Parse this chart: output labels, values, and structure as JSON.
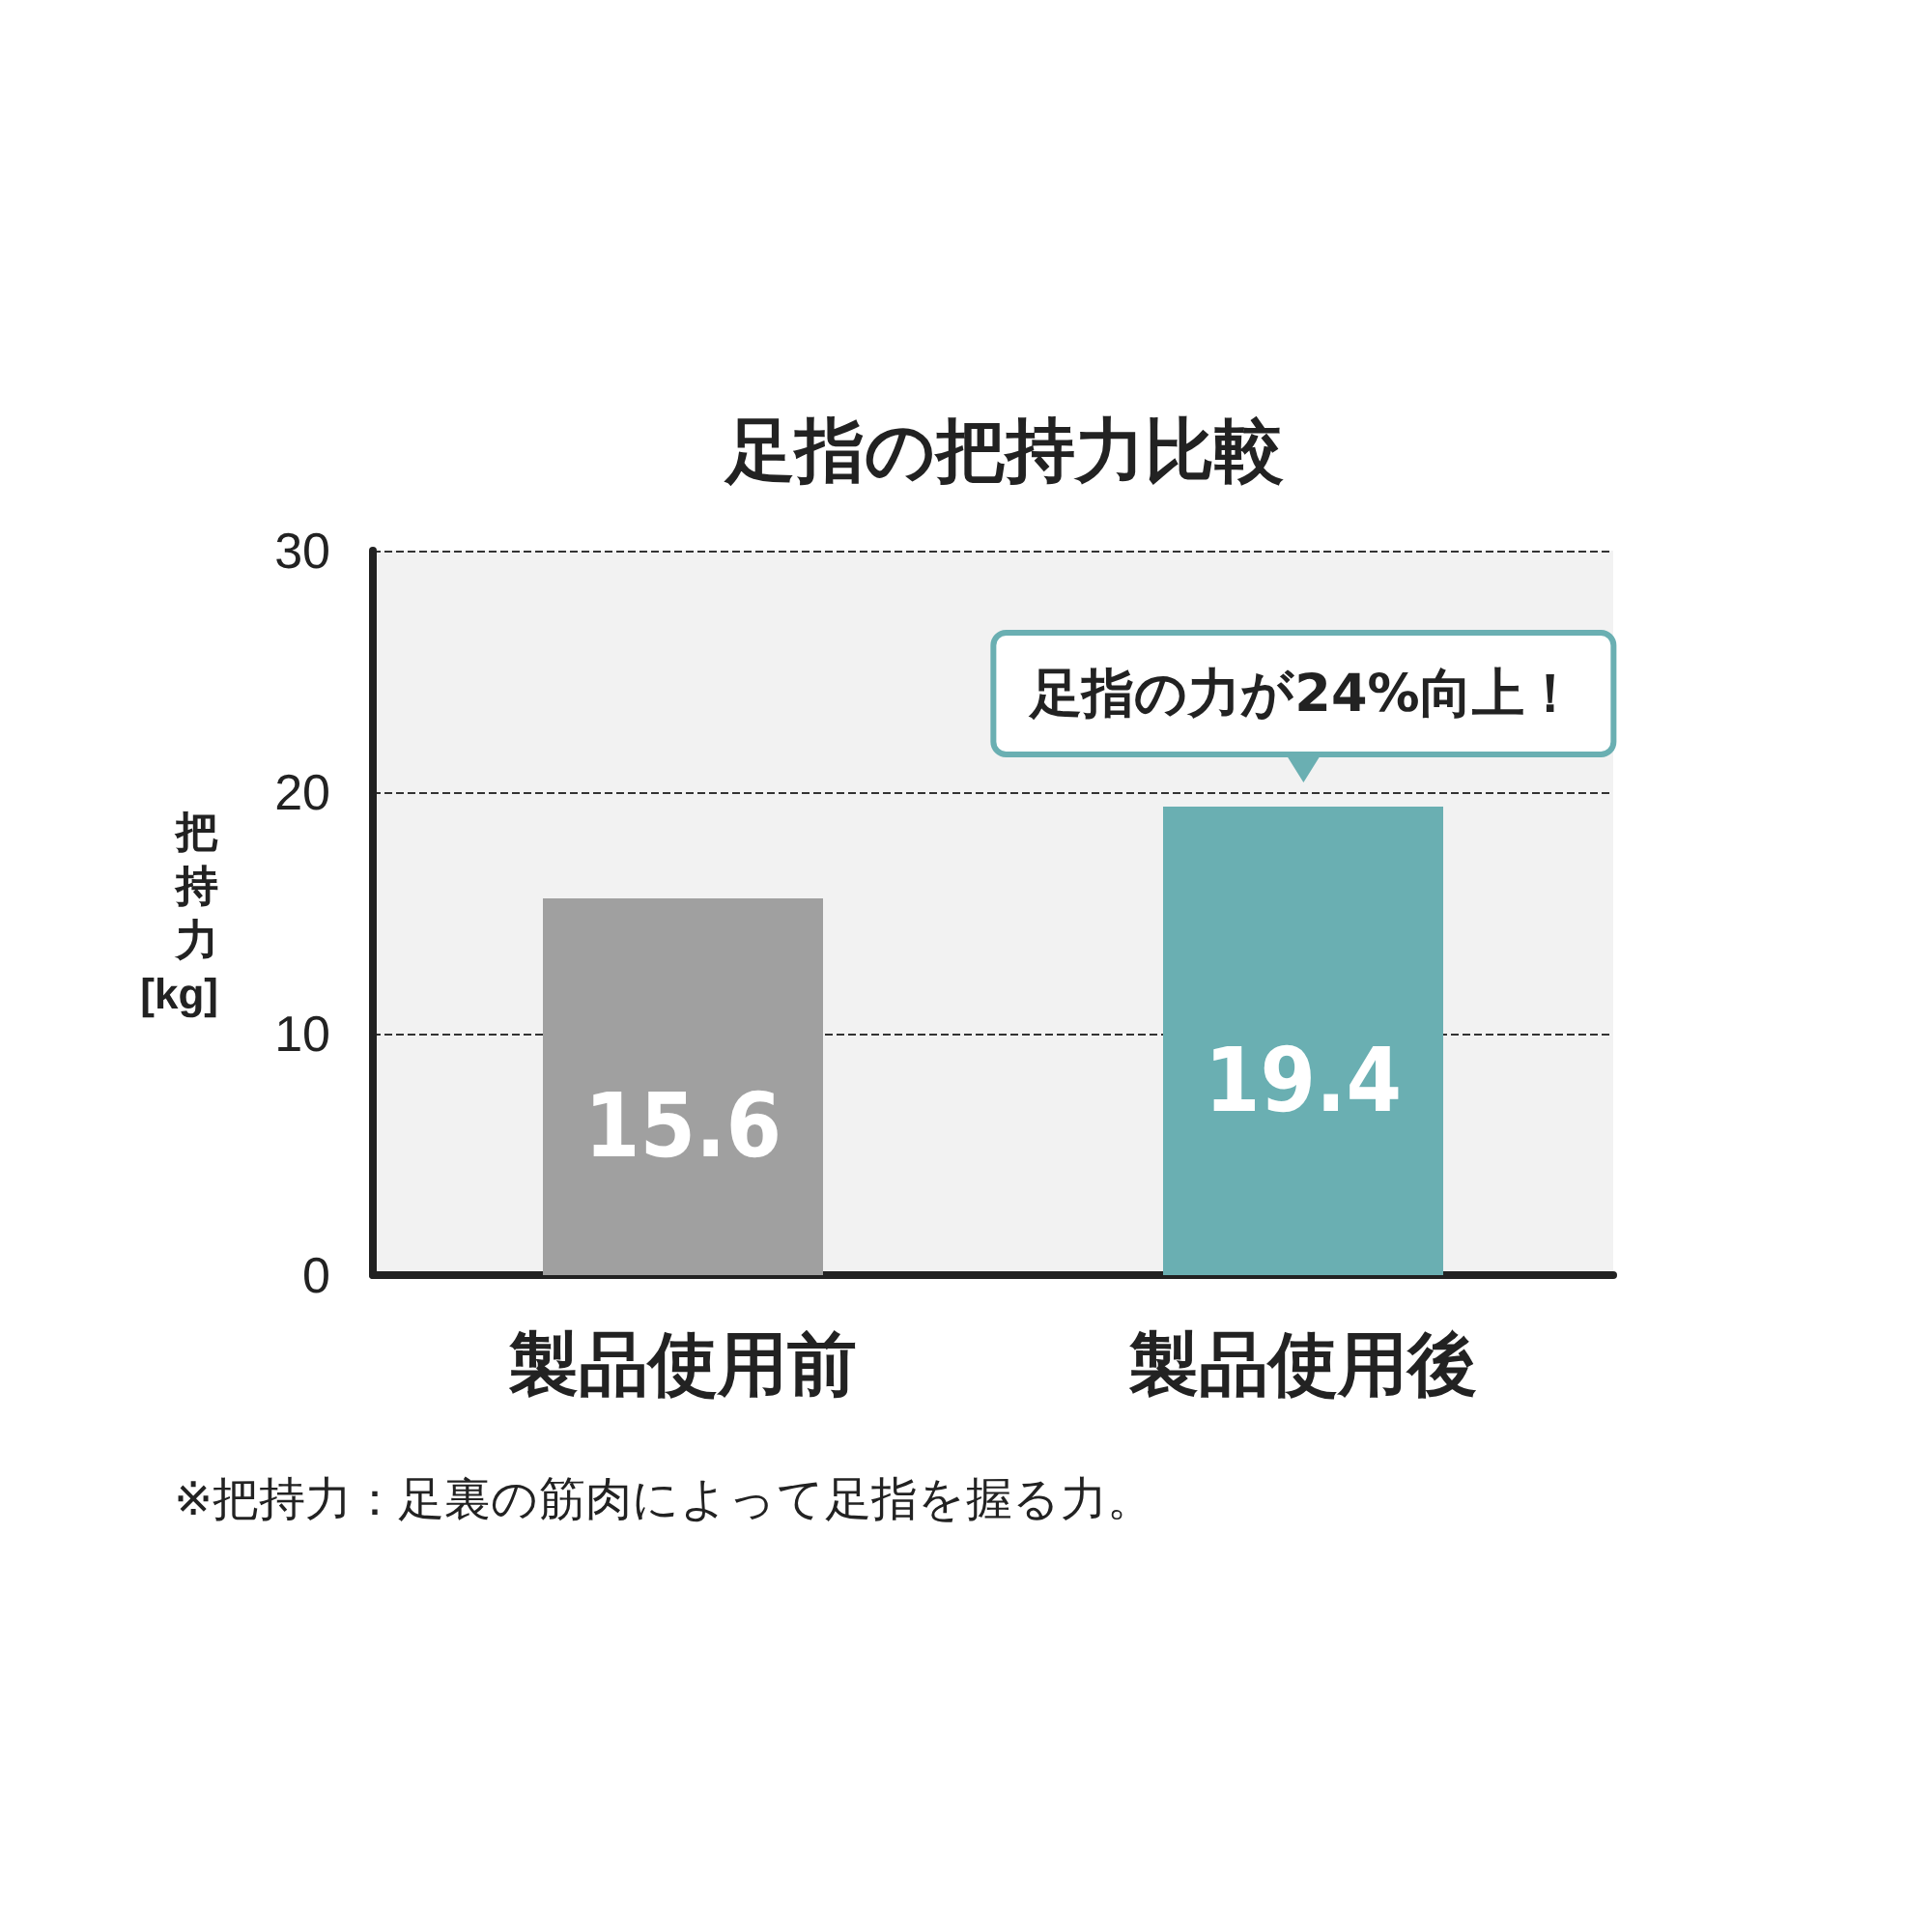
{
  "chart_data": {
    "type": "bar",
    "title": "足指の把持力比較",
    "ylabel": "把持力[kg]",
    "categories": [
      "製品使用前",
      "製品使用後"
    ],
    "values": [
      15.6,
      19.4
    ],
    "colors": [
      "#a0a0a0",
      "#6aafb2"
    ],
    "ylim": [
      0,
      30
    ],
    "yticks": [
      0,
      10,
      20,
      30
    ],
    "grid": "y",
    "data_labels": true,
    "annotations": [
      {
        "text": "足指の力が24%向上！",
        "x": "製品使用後",
        "y": 19.4
      },
      "※把持力：足裏の筋肉によって足指を握る力。"
    ]
  }
}
